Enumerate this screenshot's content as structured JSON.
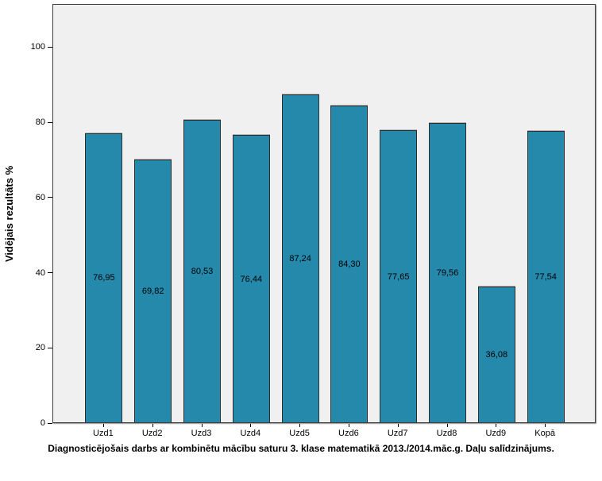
{
  "chart_data": {
    "type": "bar",
    "title": "Diagnosticējošais darbs ar kombinētu mācību saturu 3. klase matematikā 2013./2014.māc.g. Daļu salīdzinājums.",
    "xlabel": "",
    "ylabel": "Vidējais rezultāts %",
    "categories": [
      "Uzd1",
      "Uzd2",
      "Uzd3",
      "Uzd4",
      "Uzd5",
      "Uzd6",
      "Uzd7",
      "Uzd8",
      "Uzd9",
      "Kopā"
    ],
    "values": [
      76.95,
      69.82,
      80.53,
      76.44,
      87.24,
      84.3,
      77.65,
      79.56,
      36.08,
      77.54
    ],
    "value_labels": [
      "76,95",
      "69,82",
      "80,53",
      "76,44",
      "87,24",
      "84,30",
      "77,65",
      "79,56",
      "36,08",
      "77,54"
    ],
    "y_ticks": [
      0,
      20,
      40,
      60,
      80,
      100
    ],
    "ylim": [
      0,
      111.5
    ],
    "grid": false,
    "legend_position": "none",
    "bar_color": "#2589ac",
    "bar_border_color": "#2e2e2e",
    "plot_background_color": "#f0f0f0",
    "figure_background_color": "#ffffff"
  }
}
